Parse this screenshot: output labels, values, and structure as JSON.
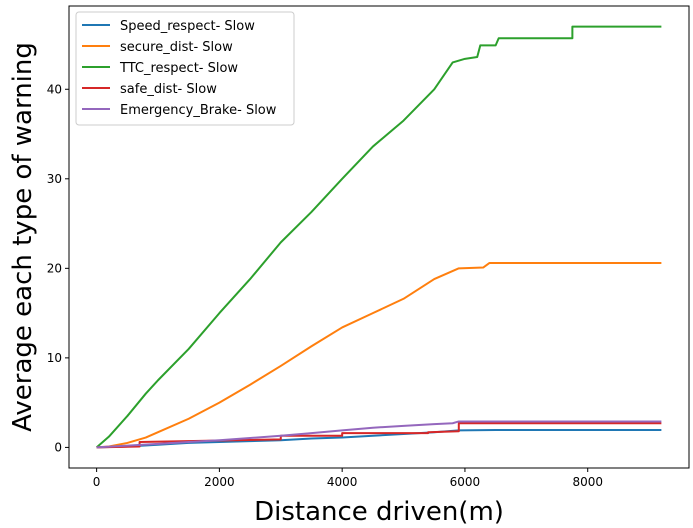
{
  "chart_data": {
    "type": "line",
    "title": "",
    "xlabel": "Distance driven(m)",
    "ylabel": "Average each type of warning",
    "xlim": [
      -450,
      9650
    ],
    "ylim": [
      -2.3,
      49.3
    ],
    "xticks": [
      0,
      2000,
      4000,
      6000,
      8000
    ],
    "yticks": [
      0,
      10,
      20,
      30,
      40
    ],
    "grid": false,
    "legend_position": "top-left",
    "series": [
      {
        "name": "Speed_respect- Slow",
        "color": "#1f77b4",
        "points": [
          [
            0,
            0
          ],
          [
            500,
            0.1
          ],
          [
            1000,
            0.3
          ],
          [
            1500,
            0.5
          ],
          [
            2000,
            0.6
          ],
          [
            2500,
            0.7
          ],
          [
            3000,
            0.8
          ],
          [
            3500,
            1.0
          ],
          [
            4000,
            1.1
          ],
          [
            4500,
            1.3
          ],
          [
            5000,
            1.5
          ],
          [
            5500,
            1.7
          ],
          [
            5900,
            1.9
          ],
          [
            6500,
            1.95
          ],
          [
            9200,
            1.95
          ]
        ]
      },
      {
        "name": "secure_dist- Slow",
        "color": "#ff7f0e",
        "points": [
          [
            0,
            0
          ],
          [
            200,
            0.1
          ],
          [
            500,
            0.5
          ],
          [
            800,
            1.1
          ],
          [
            1000,
            1.7
          ],
          [
            1500,
            3.2
          ],
          [
            2000,
            5.0
          ],
          [
            2500,
            7.0
          ],
          [
            3000,
            9.1
          ],
          [
            3500,
            11.3
          ],
          [
            4000,
            13.4
          ],
          [
            4500,
            15.0
          ],
          [
            5000,
            16.6
          ],
          [
            5500,
            18.8
          ],
          [
            5900,
            20.0
          ],
          [
            6300,
            20.1
          ],
          [
            6400,
            20.6
          ],
          [
            9200,
            20.6
          ]
        ]
      },
      {
        "name": "TTC_respect- Slow",
        "color": "#2ca02c",
        "points": [
          [
            0,
            0
          ],
          [
            200,
            1.2
          ],
          [
            500,
            3.5
          ],
          [
            800,
            6.0
          ],
          [
            1000,
            7.5
          ],
          [
            1500,
            11.0
          ],
          [
            2000,
            15.0
          ],
          [
            2500,
            18.8
          ],
          [
            3000,
            22.9
          ],
          [
            3500,
            26.3
          ],
          [
            4000,
            30.0
          ],
          [
            4500,
            33.6
          ],
          [
            5000,
            36.5
          ],
          [
            5500,
            40.0
          ],
          [
            5800,
            43.0
          ],
          [
            6000,
            43.4
          ],
          [
            6200,
            43.6
          ],
          [
            6250,
            44.9
          ],
          [
            6500,
            44.9
          ],
          [
            6550,
            45.7
          ],
          [
            7750,
            45.7
          ],
          [
            7750,
            47.0
          ],
          [
            9200,
            47.0
          ]
        ]
      },
      {
        "name": "safe_dist- Slow",
        "color": "#d62728",
        "points": [
          [
            0,
            0
          ],
          [
            700,
            0.1
          ],
          [
            700,
            0.6
          ],
          [
            3000,
            0.9
          ],
          [
            3000,
            1.3
          ],
          [
            4000,
            1.3
          ],
          [
            4000,
            1.6
          ],
          [
            5400,
            1.6
          ],
          [
            5400,
            1.7
          ],
          [
            5900,
            1.8
          ],
          [
            5900,
            2.7
          ],
          [
            9200,
            2.7
          ]
        ]
      },
      {
        "name": "Emergency_Brake- Slow",
        "color": "#9467bd",
        "points": [
          [
            0,
            0
          ],
          [
            500,
            0.2
          ],
          [
            1000,
            0.4
          ],
          [
            1500,
            0.6
          ],
          [
            2000,
            0.8
          ],
          [
            2500,
            1.05
          ],
          [
            3000,
            1.3
          ],
          [
            3500,
            1.6
          ],
          [
            4000,
            1.9
          ],
          [
            4500,
            2.2
          ],
          [
            5000,
            2.4
          ],
          [
            5500,
            2.6
          ],
          [
            5800,
            2.7
          ],
          [
            5900,
            2.9
          ],
          [
            9200,
            2.9
          ]
        ]
      }
    ]
  }
}
